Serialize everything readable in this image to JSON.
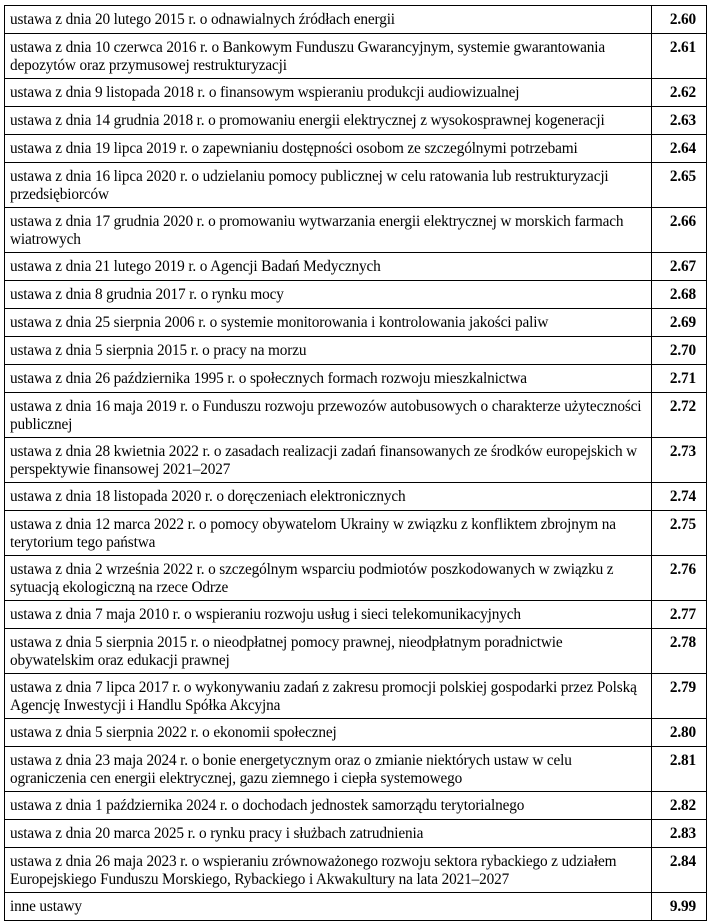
{
  "table": {
    "rows": [
      {
        "text": "ustawa z dnia 20 lutego 2015 r. o odnawialnych źródłach energii",
        "code": "2.60"
      },
      {
        "text": "ustawa z dnia 10 czerwca 2016 r. o Bankowym Funduszu Gwarancyjnym, systemie gwarantowania depozytów oraz przymusowej restrukturyzacji",
        "code": "2.61"
      },
      {
        "text": "ustawa z dnia 9 listopada 2018 r. o finansowym wspieraniu produkcji audiowizualnej",
        "code": "2.62"
      },
      {
        "text": "ustawa z dnia 14 grudnia 2018 r. o promowaniu energii elektrycznej z wysokosprawnej kogeneracji",
        "code": "2.63"
      },
      {
        "text": "ustawa z dnia 19 lipca 2019 r. o zapewnianiu dostępności osobom ze szczególnymi potrzebami",
        "code": "2.64"
      },
      {
        "text": "ustawa z dnia 16 lipca 2020 r. o udzielaniu pomocy publicznej w celu ratowania lub restrukturyzacji przedsiębiorców",
        "code": "2.65"
      },
      {
        "text": "ustawa z dnia 17 grudnia 2020 r. o promowaniu wytwarzania energii elektrycznej w morskich farmach wiatrowych",
        "code": "2.66"
      },
      {
        "text": "ustawa z dnia 21 lutego 2019 r. o Agencji Badań Medycznych",
        "code": "2.67"
      },
      {
        "text": "ustawa z dnia 8 grudnia 2017 r. o rynku mocy",
        "code": "2.68"
      },
      {
        "text": "ustawa z dnia 25 sierpnia 2006 r. o systemie monitorowania i kontrolowania jakości paliw",
        "code": "2.69"
      },
      {
        "text": "ustawa z dnia 5 sierpnia 2015 r. o pracy na morzu",
        "code": "2.70"
      },
      {
        "text": "ustawa z dnia 26 października 1995 r. o społecznych formach rozwoju mieszkalnictwa",
        "code": "2.71"
      },
      {
        "text": "ustawa z dnia 16 maja 2019 r. o Funduszu rozwoju przewozów autobusowych o charakterze użyteczności publicznej",
        "code": "2.72"
      },
      {
        "text": "ustawa z dnia 28 kwietnia 2022 r. o zasadach realizacji zadań finansowanych ze środków europejskich w perspektywie finansowej 2021–2027",
        "code": "2.73"
      },
      {
        "text": "ustawa z dnia 18 listopada 2020 r. o doręczeniach elektronicznych",
        "code": "2.74"
      },
      {
        "text": "ustawa z dnia 12 marca 2022 r. o pomocy obywatelom Ukrainy w związku z konfliktem zbrojnym na terytorium tego państwa",
        "code": "2.75"
      },
      {
        "text": "ustawa z dnia 2 września 2022 r. o szczególnym wsparciu podmiotów poszkodowanych w związku z sytuacją ekologiczną na rzece Odrze",
        "code": "2.76"
      },
      {
        "text": "ustawa z dnia 7 maja 2010 r. o wspieraniu rozwoju usług i sieci telekomunikacyjnych",
        "code": "2.77"
      },
      {
        "text": "ustawa z dnia 5 sierpnia 2015 r. o nieodpłatnej pomocy prawnej, nieodpłatnym poradnictwie obywatelskim oraz edukacji prawnej",
        "code": "2.78"
      },
      {
        "text": "ustawa z dnia 7 lipca 2017 r. o wykonywaniu zadań z zakresu promocji polskiej gospodarki przez Polską Agencję Inwestycji i Handlu Spółka Akcyjna",
        "code": "2.79"
      },
      {
        "text": "ustawa z dnia 5 sierpnia 2022 r. o ekonomii społecznej",
        "code": "2.80"
      },
      {
        "text": "ustawa z dnia 23 maja 2024 r. o bonie energetycznym oraz o zmianie niektórych ustaw w celu ograniczenia cen energii elektrycznej, gazu ziemnego i ciepła systemowego",
        "code": "2.81"
      },
      {
        "text": "ustawa z dnia 1 października 2024 r. o dochodach jednostek samorządu terytorialnego",
        "code": "2.82"
      },
      {
        "text": "ustawa z dnia 20 marca 2025 r. o rynku pracy i służbach zatrudnienia",
        "code": "2.83"
      },
      {
        "text": "ustawa z dnia 26 maja 2023 r. o wspieraniu zrównoważonego rozwoju sektora rybackiego z udziałem Europejskiego Funduszu Morskiego, Rybackiego i Akwakultury na lata 2021–2027",
        "code": "2.84"
      },
      {
        "text": "inne ustawy",
        "code": "9.99"
      }
    ]
  }
}
